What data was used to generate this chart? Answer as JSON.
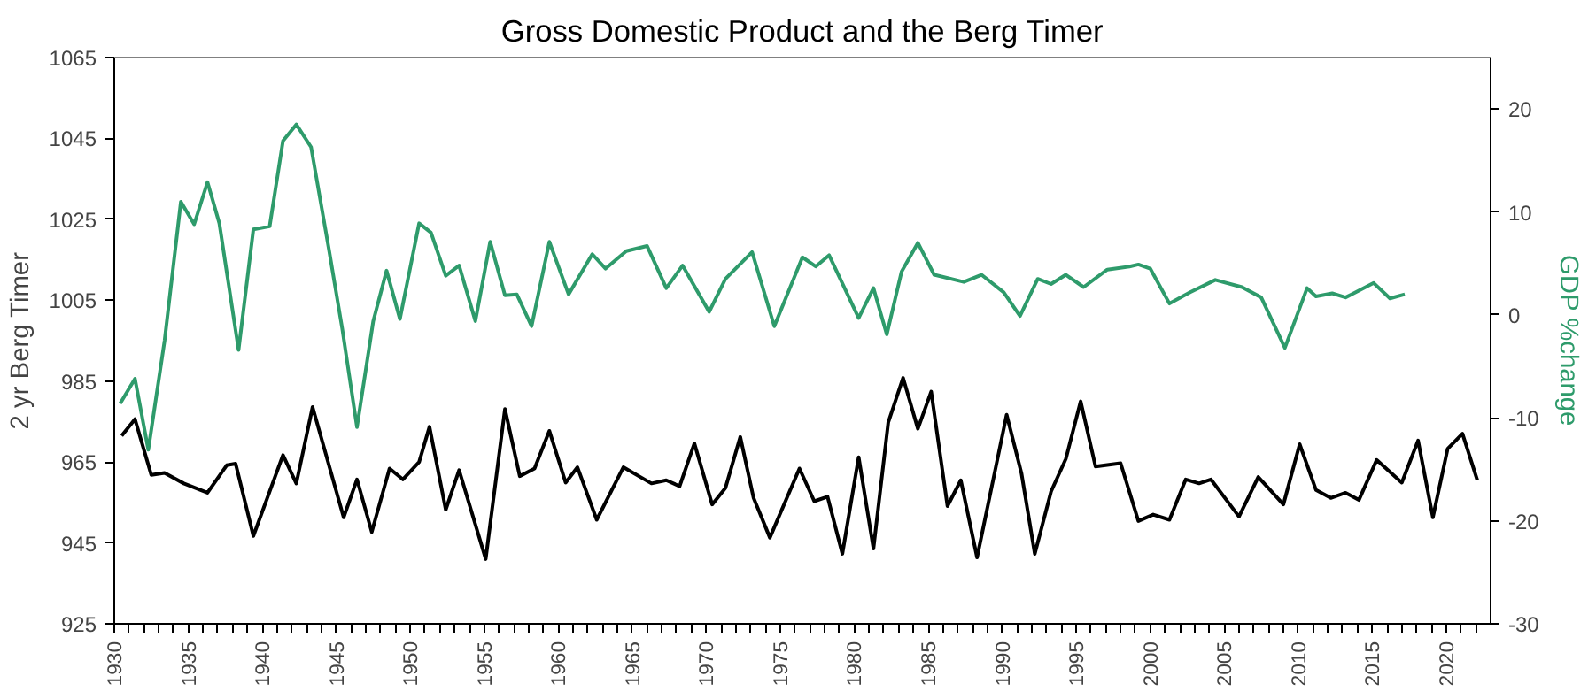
{
  "chart_data": {
    "type": "line",
    "title": "Gross Domestic Product and the Berg Timer",
    "ylabel": "2 yr Berg Timer",
    "y2label": "GDP %change",
    "xlim": [
      1930,
      2023
    ],
    "xticks": [
      1930,
      {
        "value": 1931,
        "label": null
      },
      {
        "value": 1932,
        "label": null
      },
      {
        "value": 1933,
        "label": null
      },
      {
        "value": 1934,
        "label": null
      },
      1935,
      {
        "value": 1936,
        "label": null
      },
      {
        "value": 1937,
        "label": null
      },
      {
        "value": 1938,
        "label": null
      },
      {
        "value": 1939,
        "label": null
      },
      1940,
      {
        "value": 1941,
        "label": null
      },
      {
        "value": 1942,
        "label": null
      },
      {
        "value": 1943,
        "label": null
      },
      {
        "value": 1944,
        "label": null
      },
      1945,
      {
        "value": 1946,
        "label": null
      },
      {
        "value": 1947,
        "label": null
      },
      {
        "value": 1948,
        "label": null
      },
      {
        "value": 1949,
        "label": null
      },
      1950,
      {
        "value": 1951,
        "label": null
      },
      {
        "value": 1952,
        "label": null
      },
      {
        "value": 1953,
        "label": null
      },
      {
        "value": 1954,
        "label": null
      },
      1955,
      {
        "value": 1956,
        "label": null
      },
      {
        "value": 1957,
        "label": null
      },
      {
        "value": 1958,
        "label": null
      },
      {
        "value": 1959,
        "label": null
      },
      1960,
      {
        "value": 1961,
        "label": null
      },
      {
        "value": 1962,
        "label": null
      },
      {
        "value": 1963,
        "label": null
      },
      {
        "value": 1964,
        "label": null
      },
      1965,
      {
        "value": 1966,
        "label": null
      },
      {
        "value": 1967,
        "label": null
      },
      {
        "value": 1968,
        "label": null
      },
      {
        "value": 1969,
        "label": null
      },
      1970,
      {
        "value": 1971,
        "label": null
      },
      {
        "value": 1972,
        "label": null
      },
      {
        "value": 1973,
        "label": null
      },
      {
        "value": 1974,
        "label": null
      },
      1975,
      {
        "value": 1976,
        "label": null
      },
      {
        "value": 1977,
        "label": null
      },
      {
        "value": 1978,
        "label": null
      },
      {
        "value": 1979,
        "label": null
      },
      1980,
      {
        "value": 1981,
        "label": null
      },
      {
        "value": 1982,
        "label": null
      },
      {
        "value": 1983,
        "label": null
      },
      {
        "value": 1984,
        "label": null
      },
      1985,
      {
        "value": 1986,
        "label": null
      },
      {
        "value": 1987,
        "label": null
      },
      {
        "value": 1988,
        "label": null
      },
      {
        "value": 1989,
        "label": null
      },
      1990,
      {
        "value": 1991,
        "label": null
      },
      {
        "value": 1992,
        "label": null
      },
      {
        "value": 1993,
        "label": null
      },
      {
        "value": 1994,
        "label": null
      },
      1995,
      {
        "value": 1996,
        "label": null
      },
      {
        "value": 1997,
        "label": null
      },
      {
        "value": 1998,
        "label": null
      },
      {
        "value": 1999,
        "label": null
      },
      2000,
      {
        "value": 2001,
        "label": null
      },
      {
        "value": 2002,
        "label": null
      },
      {
        "value": 2003,
        "label": null
      },
      {
        "value": 2004,
        "label": null
      },
      2005,
      {
        "value": 2006,
        "label": null
      },
      {
        "value": 2007,
        "label": null
      },
      {
        "value": 2008,
        "label": null
      },
      {
        "value": 2009,
        "label": null
      },
      2010,
      {
        "value": 2011,
        "label": null
      },
      {
        "value": 2012,
        "label": null
      },
      {
        "value": 2013,
        "label": null
      },
      {
        "value": 2014,
        "label": null
      },
      2015,
      {
        "value": 2016,
        "label": null
      },
      {
        "value": 2017,
        "label": null
      },
      {
        "value": 2018,
        "label": null
      },
      {
        "value": 2019,
        "label": null
      },
      2020,
      {
        "value": 2021,
        "label": null
      },
      {
        "value": 2022,
        "label": null
      }
    ],
    "ylim": [
      925,
      1065
    ],
    "yticks": [
      925,
      945,
      965,
      985,
      1005,
      1025,
      1045,
      1065
    ],
    "y2lim": [
      -30,
      25
    ],
    "y2ticks": [
      -30,
      -20,
      -10,
      0,
      10,
      20
    ],
    "grid": false,
    "line_style": "solid",
    "series": [
      {
        "color": "#000000",
        "x": [
          1930.5,
          1931.4,
          1932.5,
          1933.4,
          1934.7,
          1936.3,
          1937.6,
          1938.2,
          1939.4,
          1941.4,
          1942.3,
          1943.4,
          1945.5,
          1946.4,
          1947.4,
          1948.6,
          1949.5,
          1950.6,
          1951.3,
          1952.4,
          1953.3,
          1955.1,
          1956.4,
          1957.4,
          1958.4,
          1959.4,
          1960.5,
          1961.3,
          1962.6,
          1964.4,
          1966.3,
          1967.3,
          1968.2,
          1969.2,
          1970.4,
          1971.3,
          1972.3,
          1973.2,
          1974.3,
          1976.3,
          1977.3,
          1978.2,
          1979.2,
          1980.3,
          1981.3,
          1982.3,
          1983.3,
          1984.3,
          1985.2,
          1986.3,
          1987.2,
          1988.3,
          1990.3,
          1991.3,
          1992.2,
          1993.3,
          1994.3,
          1995.3,
          1996.3,
          1998.0,
          1999.2,
          2000.2,
          2001.3,
          2002.4,
          2003.3,
          2004.1,
          2006.0,
          2007.3,
          2009.0,
          2010.1,
          2011.2,
          2012.2,
          2013.2,
          2014.1,
          2015.3,
          2017.0,
          2018.1,
          2019.1,
          2020.1,
          2021.1,
          2022.1
        ],
        "values": [
          971.5,
          975.6,
          961.8,
          962.3,
          959.7,
          957.4,
          964.2,
          964.6,
          946.7,
          966.7,
          959.7,
          978.6,
          951.3,
          960.7,
          947.7,
          963.4,
          960.7,
          965,
          973.7,
          953.2,
          963,
          941,
          978.1,
          961.5,
          963.4,
          972.7,
          959.9,
          963.7,
          950.7,
          963.7,
          959.7,
          960.5,
          959,
          969.6,
          954.5,
          958.6,
          971.2,
          956.1,
          946.3,
          963.4,
          955.3,
          956.4,
          942.3,
          966.2,
          943.6,
          974.8,
          985.8,
          973.2,
          982.4,
          954.1,
          960.5,
          941.4,
          976.7,
          962.2,
          942.3,
          957.7,
          965.8,
          980,
          963.9,
          964.7,
          950.4,
          952,
          950.7,
          960.7,
          959.7,
          960.7,
          951.5,
          961.3,
          954.5,
          969.4,
          958.1,
          956.1,
          957.4,
          955.6,
          965.5,
          959.9,
          970.3,
          951.3,
          968.3,
          972,
          960.5
        ]
      },
      {
        "color": "#2e9b6b",
        "axis": "y2",
        "x": [
          1930.4,
          1931.4,
          1932.3,
          1933.4,
          1934.5,
          1935.4,
          1936.3,
          1937.1,
          1938.4,
          1939.4,
          1940.5,
          1941.4,
          1942.3,
          1943.3,
          1944.5,
          1945.4,
          1946.4,
          1947.5,
          1948.4,
          1949.3,
          1950.6,
          1951.4,
          1952.4,
          1953.3,
          1954.4,
          1955.4,
          1956.4,
          1957.2,
          1958.2,
          1959.4,
          1960.7,
          1962.3,
          1963.2,
          1964.6,
          1966.0,
          1967.3,
          1968.4,
          1970.2,
          1971.3,
          1973.1,
          1974.6,
          1976.5,
          1977.4,
          1978.3,
          1980.3,
          1981.3,
          1982.2,
          1983.2,
          1984.3,
          1985.4,
          1987.4,
          1988.6,
          1990.1,
          1991.2,
          1992.4,
          1993.3,
          1994.3,
          1995.5,
          1997.1,
          1998.6,
          1999.2,
          2000.0,
          2001.3,
          2002.7,
          2004.4,
          2006.2,
          2007.5,
          2009.1,
          2010.6,
          2011.2,
          2012.3,
          2013.2,
          2015.1,
          2016.2,
          2017.2
        ],
        "values": [
          -8.6,
          -6.2,
          -13.1,
          -2.5,
          11,
          8.8,
          12.9,
          8.9,
          -3.4,
          8.3,
          8.6,
          16.9,
          18.5,
          16.3,
          6.4,
          -1.3,
          -10.9,
          -0.6,
          4.3,
          -0.4,
          8.9,
          8,
          3.8,
          4.8,
          -0.6,
          7.1,
          1.9,
          2,
          -1.1,
          7.1,
          2,
          5.9,
          4.5,
          6.2,
          6.7,
          2.6,
          4.8,
          0.3,
          3.5,
          6.1,
          -1.1,
          5.6,
          4.7,
          5.8,
          -0.3,
          2.6,
          -1.9,
          4.2,
          7,
          3.9,
          3.2,
          3.9,
          2.2,
          -0.1,
          3.5,
          3,
          3.9,
          2.7,
          4.4,
          4.7,
          4.9,
          4.5,
          1.1,
          2.2,
          3.4,
          2.7,
          1.7,
          -3.2,
          2.6,
          1.8,
          2.1,
          1.7,
          3.1,
          1.6,
          2
        ]
      }
    ]
  }
}
